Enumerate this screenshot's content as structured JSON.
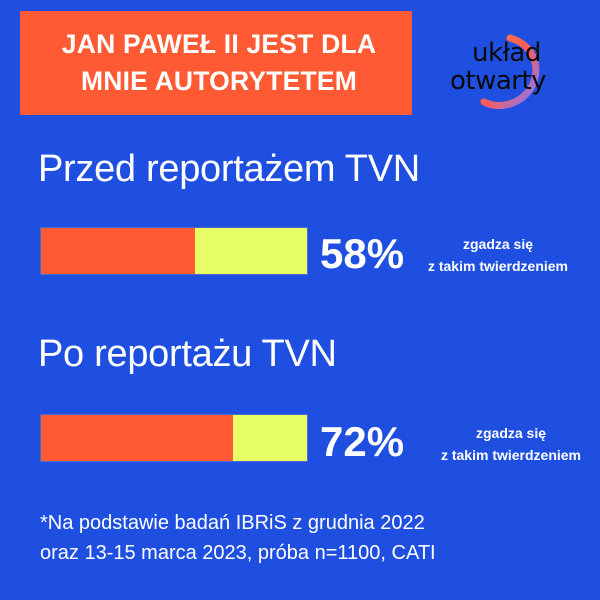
{
  "header": {
    "title_line1": "JAN PAWEŁ II JEST DLA",
    "title_line2": "MNIE AUTORYTETEM"
  },
  "logo": {
    "line1": "układ",
    "line2": "otwarty"
  },
  "chart_data": [
    {
      "type": "bar",
      "title": "Przed reportażem TVN",
      "value": 58,
      "value_label": "58%",
      "note": [
        "zgadza się",
        "z takim twierdzeniem"
      ],
      "colors": {
        "agree": "#ff5a33",
        "rest": "#e8ff66"
      }
    },
    {
      "type": "bar",
      "title": "Po reportażu TVN",
      "value": 72,
      "value_label": "72%",
      "note": [
        "zgadza się",
        "z takim twierdzeniem"
      ],
      "colors": {
        "agree": "#ff5a33",
        "rest": "#e8ff66"
      }
    }
  ],
  "footnote": {
    "line1": "*Na podstawie badań IBRiS z grudnia 2022",
    "line2": "oraz 13-15 marca 2023, próba n=1100, CATI"
  },
  "colors": {
    "background": "#1f4fe0",
    "accent": "#ff5a33",
    "highlight": "#e8ff66"
  }
}
